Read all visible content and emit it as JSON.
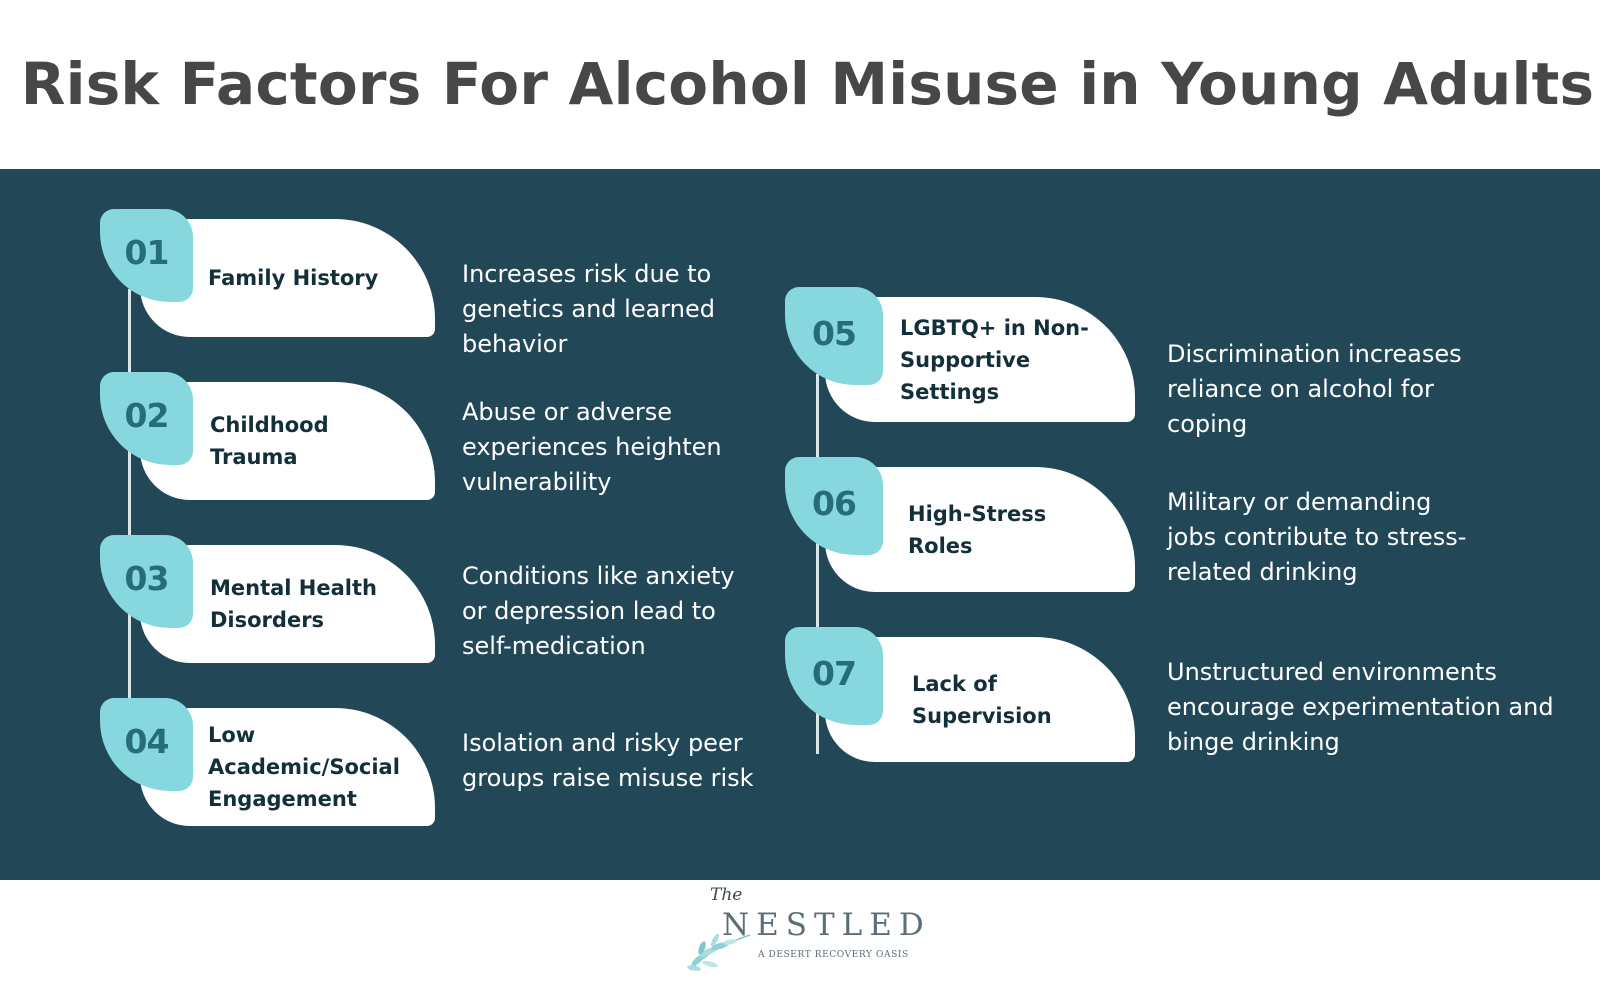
{
  "title": "Risk Factors For Alcohol Misuse in Young Adults",
  "colors": {
    "panel": "#224858",
    "badge": "#86d8de",
    "badge_text": "#276c7a",
    "pill": "#ffffff",
    "pill_text": "#122f3a",
    "title_text": "#474747"
  },
  "factors": [
    {
      "num": "01",
      "label": "Family History",
      "description": "Increases risk due to genetics and learned behavior"
    },
    {
      "num": "02",
      "label": "Childhood Trauma",
      "description": "Abuse or adverse experiences heighten vulnerability"
    },
    {
      "num": "03",
      "label": "Mental Health Disorders",
      "description": "Conditions like anxiety or depression lead to self-medication"
    },
    {
      "num": "04",
      "label": "Low Academic/Social Engagement",
      "description": "Isolation and risky peer groups raise misuse risk"
    },
    {
      "num": "05",
      "label": "LGBTQ+ in Non-Supportive Settings",
      "description": "Discrimination increases reliance on alcohol for coping"
    },
    {
      "num": "06",
      "label": "High-Stress Roles",
      "description": "Military or demanding jobs contribute to stress-related drinking"
    },
    {
      "num": "07",
      "label": "Lack of Supervision",
      "description": " Unstructured environments encourage experimentation and binge drinking"
    }
  ],
  "logo": {
    "the": "The",
    "word": "NESTLED",
    "tagline": "A DESERT RECOVERY OASIS"
  }
}
